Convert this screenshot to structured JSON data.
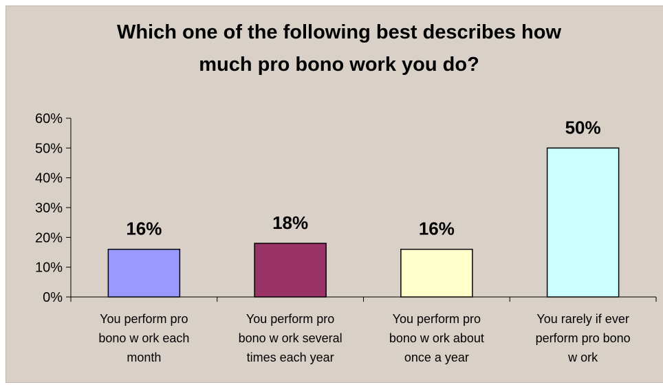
{
  "chart_data": {
    "type": "bar",
    "title_lines": [
      "Which one of the following best describes how",
      "much pro bono work you do?"
    ],
    "categories": [
      [
        "You perform pro",
        "bono w ork each",
        "month"
      ],
      [
        "You perform pro",
        "bono w ork several",
        "times each year"
      ],
      [
        "You perform pro",
        "bono w ork about",
        "once a year"
      ],
      [
        "You rarely if ever",
        "perform pro bono",
        "w ork"
      ]
    ],
    "values": [
      16,
      18,
      16,
      50
    ],
    "data_labels": [
      "16%",
      "18%",
      "16%",
      "50%"
    ],
    "bar_colors": [
      "#9999ff",
      "#993366",
      "#ffffcc",
      "#ccffff"
    ],
    "yticks": [
      "0%",
      "10%",
      "20%",
      "30%",
      "40%",
      "50%",
      "60%"
    ],
    "ylim": [
      0,
      60
    ],
    "grid": false,
    "legend": "none",
    "background": "#d9d1c8"
  }
}
